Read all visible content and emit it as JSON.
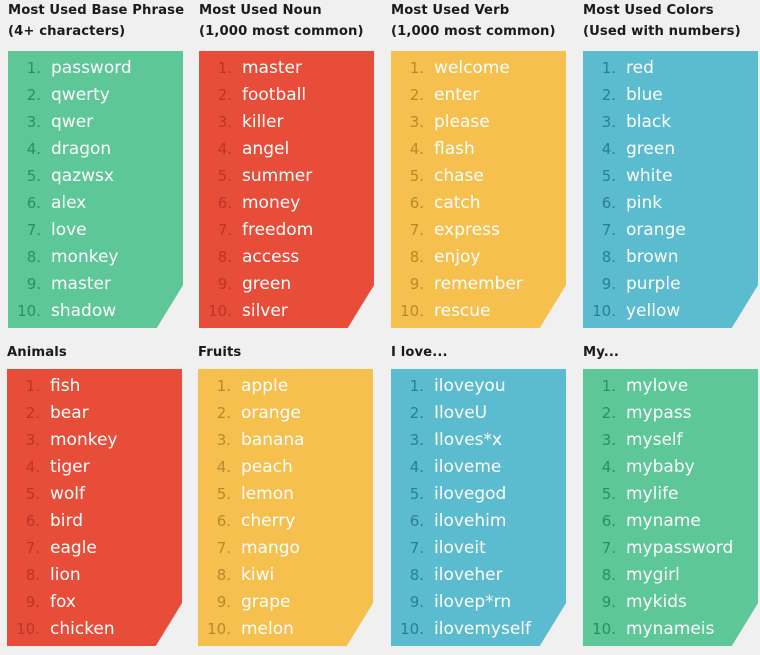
{
  "colors": {
    "green": "#5dc797",
    "red": "#e84d39",
    "yellow": "#f6c04f",
    "blue": "#5bbbcf",
    "text_light": "#ffffff",
    "num_on_red": "#b8362a",
    "num_on_green": "#2f8d63",
    "num_on_yellow": "#b38b2e",
    "num_on_blue": "#2d7e91"
  },
  "panels": [
    {
      "title_line1": "Most Used Base Phrase",
      "title_line2": "(4+ characters)",
      "color": "green",
      "items": [
        "password",
        "qwerty",
        "qwer",
        "dragon",
        "qazwsx",
        "alex",
        "love",
        "monkey",
        "master",
        "shadow"
      ]
    },
    {
      "title_line1": "Most Used Noun",
      "title_line2": "(1,000 most common)",
      "color": "red",
      "items": [
        "master",
        "football",
        "killer",
        "angel",
        "summer",
        "money",
        "freedom",
        "access",
        "green",
        "silver"
      ]
    },
    {
      "title_line1": "Most Used Verb",
      "title_line2": "(1,000 most common)",
      "color": "yellow",
      "items": [
        "welcome",
        "enter",
        "please",
        "flash",
        "chase",
        "catch",
        "express",
        "enjoy",
        "remember",
        "rescue"
      ]
    },
    {
      "title_line1": "Most Used Colors",
      "title_line2": "(Used with numbers)",
      "color": "blue",
      "items": [
        "red",
        "blue",
        "black",
        "green",
        "white",
        "pink",
        "orange",
        "brown",
        "purple",
        "yellow"
      ]
    },
    {
      "title_line1": "Animals",
      "title_line2": "",
      "color": "red",
      "items": [
        "fish",
        "bear",
        "monkey",
        "tiger",
        "wolf",
        "bird",
        "eagle",
        "lion",
        "fox",
        "chicken"
      ]
    },
    {
      "title_line1": "Fruits",
      "title_line2": "",
      "color": "yellow",
      "items": [
        "apple",
        "orange",
        "banana",
        "peach",
        "lemon",
        "cherry",
        "mango",
        "kiwi",
        "grape",
        "melon"
      ]
    },
    {
      "title_line1": "I love...",
      "title_line2": "",
      "color": "blue",
      "items": [
        "iloveyou",
        "IloveU",
        "Iloves*x",
        "iloveme",
        "ilovegod",
        "ilovehim",
        "iloveit",
        "iloveher",
        "ilovep*rn",
        "ilovemyself"
      ]
    },
    {
      "title_line1": "My...",
      "title_line2": "",
      "color": "green",
      "items": [
        "mylove",
        "mypass",
        "myself",
        "mybaby",
        "mylife",
        "myname",
        "mypassword",
        "mygirl",
        "mykids",
        "mynameis"
      ]
    }
  ]
}
